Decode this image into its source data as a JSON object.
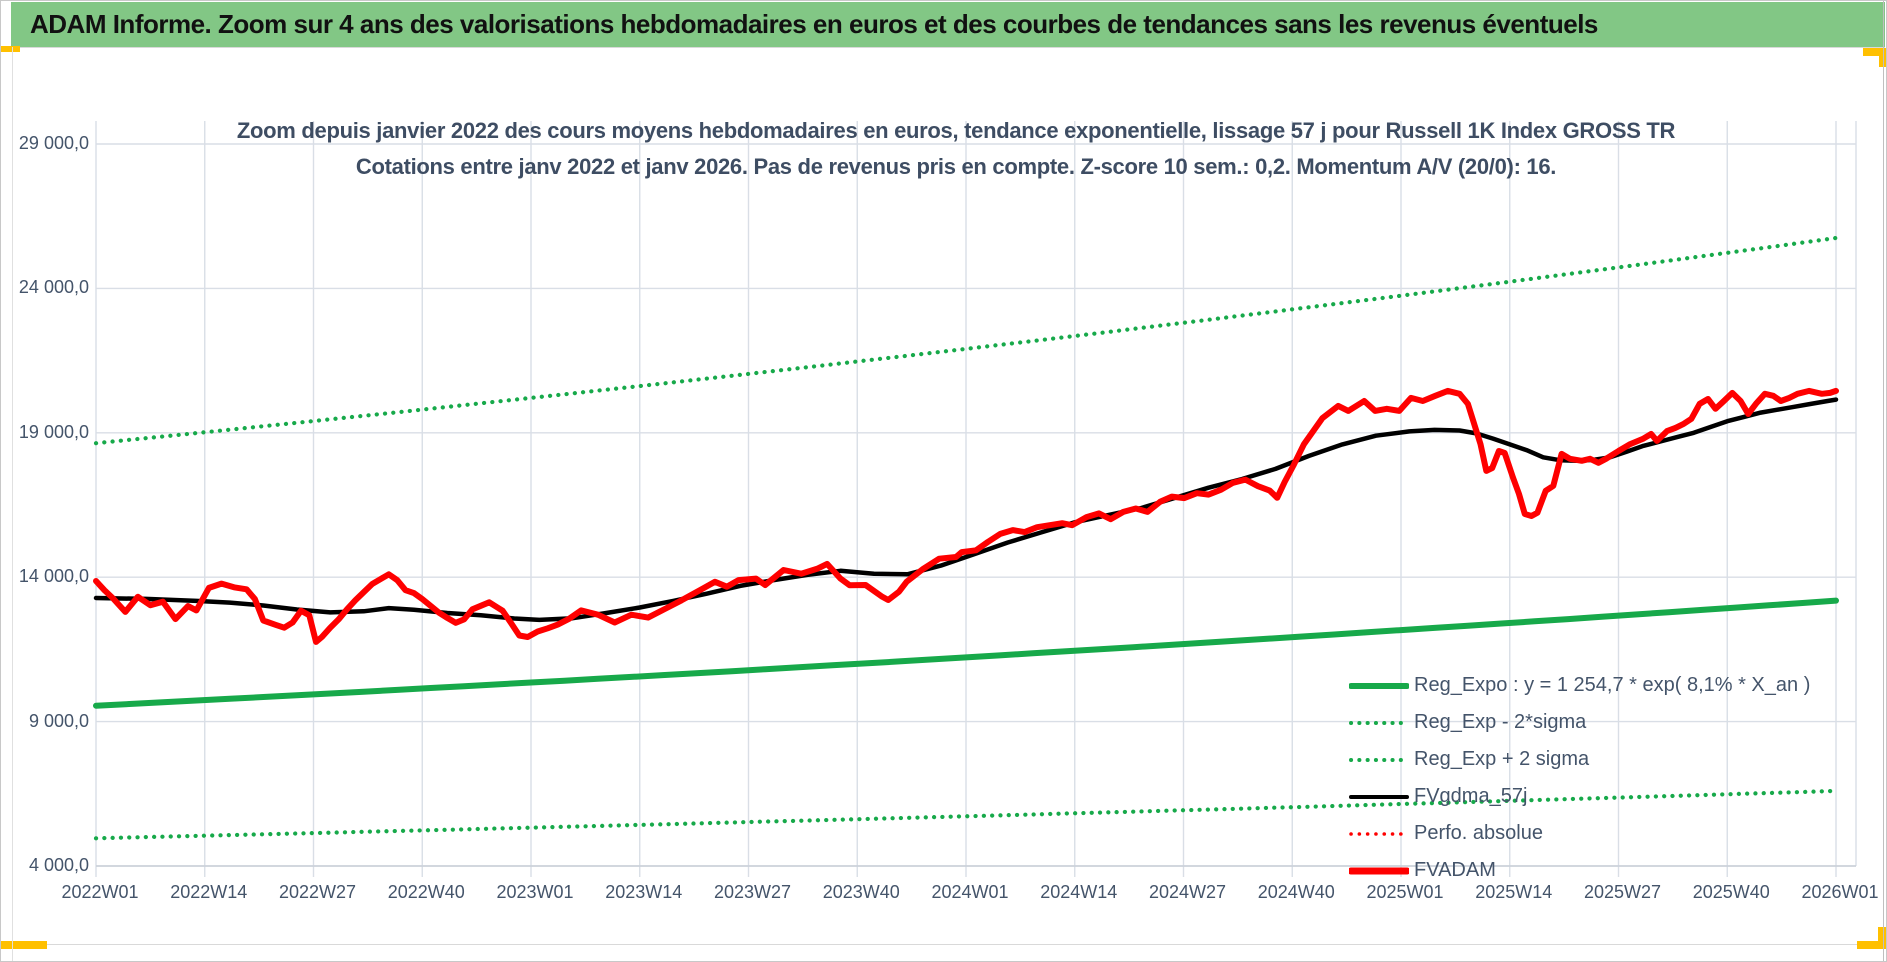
{
  "header": {
    "title": "ADAM Informe. Zoom sur 4 ans des valorisations hebdomadaires en euros et des courbes de tendances sans les revenus éventuels"
  },
  "chart": {
    "title_line1": "Zoom depuis janvier 2022 des cours moyens hebdomadaires en euros, tendance exponentielle, lissage 57 j pour Russell 1K Index GROSS TR",
    "title_line2": "Cotations entre janv 2022 et janv 2026. Pas de revenus pris en compte. Z-score 10 sem.: 0,2. Momentum A/V (20/0): 16."
  },
  "chart_data": {
    "type": "line",
    "title": "Zoom depuis janvier 2022 des cours moyens hebdomadaires en euros, tendance exponentielle, lissage 57 j pour Russell 1K Index GROSS TR",
    "subtitle": "Cotations entre janv 2022 et janv 2026. Pas de revenus pris en compte. Z-score 10 sem.: 0,2. Momentum A/V (20/0): 16.",
    "legend_position": "inside-right",
    "grid": true,
    "colors": {
      "green": "#17A94A",
      "red": "#FE0000",
      "black": "#000000",
      "grid": "#D9DEE6",
      "axis_text": "#44546A",
      "header_green": "#82C785",
      "yellow": "#FFC000"
    },
    "x_axis": {
      "tick_labels": [
        "2022W01",
        "2022W14",
        "2022W27",
        "2022W40",
        "2023W01",
        "2023W14",
        "2023W27",
        "2023W40",
        "2024W01",
        "2024W14",
        "2024W27",
        "2024W40",
        "2025W01",
        "2025W14",
        "2025W27",
        "2025W40",
        "2026W01"
      ],
      "weeks_per_tick": 13,
      "total_weeks": 208
    },
    "y_axis": {
      "tick_labels": [
        "29 000,0",
        "24 000,0",
        "19 000,0",
        "14 000,0",
        "9 000,0",
        "4 000,0"
      ],
      "tick_values": [
        29000,
        24000,
        19000,
        14000,
        9000,
        4000
      ],
      "min": 4000,
      "max": 29000
    },
    "legend": [
      {
        "label": "Reg_Expo : y = 1 254,7 * exp( 8,1% *  X_an )",
        "style": "solid",
        "color": "green",
        "width": 6
      },
      {
        "label": "Reg_Exp - 2*sigma",
        "style": "dotted",
        "color": "green",
        "width": 4
      },
      {
        "label": "Reg_Exp + 2 sigma",
        "style": "dotted",
        "color": "green",
        "width": 4
      },
      {
        "label": "FVgdma_57j",
        "style": "solid",
        "color": "black",
        "width": 4
      },
      {
        "label": "Perfo. absolue",
        "style": "dotted",
        "color": "red",
        "width": 3.5
      },
      {
        "label": "FVADAM",
        "style": "solid",
        "color": "red",
        "width": 7
      }
    ],
    "series": [
      {
        "name": "Reg_Exp - 2*sigma",
        "style": "dotted",
        "color": "green",
        "width": 4.2,
        "z": 1,
        "trend": {
          "start": 4960,
          "end": 6600
        }
      },
      {
        "name": "Reg_Exp + 2 sigma",
        "style": "dotted",
        "color": "green",
        "width": 4.2,
        "z": 2,
        "trend": {
          "start": 18640,
          "end": 25745
        }
      },
      {
        "name": "Reg_Expo",
        "style": "solid",
        "color": "green",
        "width": 6,
        "z": 3,
        "trend": {
          "start": 9550,
          "end": 13190
        }
      },
      {
        "name": "Perfo. absolue",
        "style": "dotted",
        "color": "red",
        "width": 3.5,
        "z": 4,
        "same_as": "FVADAM"
      },
      {
        "name": "FVgdma_57j",
        "style": "solid",
        "color": "black",
        "width": 4.5,
        "z": 5,
        "points": [
          [
            0,
            13280
          ],
          [
            6,
            13250
          ],
          [
            12,
            13180
          ],
          [
            16,
            13120
          ],
          [
            20,
            13020
          ],
          [
            24,
            12880
          ],
          [
            28,
            12780
          ],
          [
            32,
            12820
          ],
          [
            35,
            12930
          ],
          [
            38,
            12870
          ],
          [
            42,
            12760
          ],
          [
            46,
            12680
          ],
          [
            50,
            12570
          ],
          [
            53,
            12520
          ],
          [
            57,
            12580
          ],
          [
            61,
            12760
          ],
          [
            65,
            12950
          ],
          [
            69,
            13180
          ],
          [
            73,
            13430
          ],
          [
            77,
            13700
          ],
          [
            81,
            13900
          ],
          [
            85,
            14080
          ],
          [
            89,
            14220
          ],
          [
            93,
            14120
          ],
          [
            97,
            14100
          ],
          [
            101,
            14400
          ],
          [
            105,
            14800
          ],
          [
            109,
            15200
          ],
          [
            113,
            15550
          ],
          [
            117,
            15900
          ],
          [
            121,
            16150
          ],
          [
            125,
            16400
          ],
          [
            129,
            16750
          ],
          [
            133,
            17100
          ],
          [
            137,
            17400
          ],
          [
            141,
            17750
          ],
          [
            145,
            18200
          ],
          [
            149,
            18600
          ],
          [
            153,
            18900
          ],
          [
            157,
            19050
          ],
          [
            160,
            19100
          ],
          [
            163,
            19080
          ],
          [
            165,
            18980
          ],
          [
            167,
            18800
          ],
          [
            169,
            18600
          ],
          [
            171,
            18400
          ],
          [
            173,
            18150
          ],
          [
            175,
            18050
          ],
          [
            177,
            18030
          ],
          [
            179,
            18060
          ],
          [
            181,
            18150
          ],
          [
            183,
            18350
          ],
          [
            185,
            18550
          ],
          [
            187,
            18700
          ],
          [
            189,
            18850
          ],
          [
            191,
            19000
          ],
          [
            193,
            19200
          ],
          [
            195,
            19400
          ],
          [
            197,
            19550
          ],
          [
            199,
            19700
          ],
          [
            201,
            19800
          ],
          [
            203,
            19900
          ],
          [
            205,
            20000
          ],
          [
            207,
            20100
          ],
          [
            208,
            20150
          ]
        ]
      },
      {
        "name": "FVADAM",
        "style": "solid",
        "color": "red",
        "width": 6,
        "z": 6,
        "points": [
          [
            0,
            13870
          ],
          [
            1,
            13550
          ],
          [
            2,
            13280
          ],
          [
            3.5,
            12800
          ],
          [
            5,
            13320
          ],
          [
            6.5,
            13030
          ],
          [
            8,
            13150
          ],
          [
            9.5,
            12550
          ],
          [
            11,
            13000
          ],
          [
            12,
            12850
          ],
          [
            13.5,
            13630
          ],
          [
            15,
            13780
          ],
          [
            16.5,
            13650
          ],
          [
            18,
            13580
          ],
          [
            19,
            13240
          ],
          [
            20,
            12500
          ],
          [
            21.5,
            12350
          ],
          [
            22.5,
            12250
          ],
          [
            23.5,
            12430
          ],
          [
            24.5,
            12840
          ],
          [
            25.5,
            12680
          ],
          [
            26.3,
            11760
          ],
          [
            27,
            11930
          ],
          [
            28,
            12250
          ],
          [
            29,
            12540
          ],
          [
            30,
            12890
          ],
          [
            31,
            13200
          ],
          [
            32,
            13480
          ],
          [
            33,
            13760
          ],
          [
            34,
            13930
          ],
          [
            35,
            14100
          ],
          [
            36,
            13900
          ],
          [
            37,
            13550
          ],
          [
            38,
            13450
          ],
          [
            39,
            13240
          ],
          [
            40,
            13010
          ],
          [
            41,
            12770
          ],
          [
            42,
            12590
          ],
          [
            43,
            12420
          ],
          [
            44,
            12540
          ],
          [
            45,
            12890
          ],
          [
            46,
            13010
          ],
          [
            47,
            13130
          ],
          [
            48,
            12950
          ],
          [
            48.6,
            12840
          ],
          [
            49.6,
            12420
          ],
          [
            50.6,
            11980
          ],
          [
            51.6,
            11930
          ],
          [
            52.8,
            12120
          ],
          [
            54,
            12230
          ],
          [
            55.2,
            12360
          ],
          [
            56.5,
            12550
          ],
          [
            58,
            12850
          ],
          [
            60,
            12700
          ],
          [
            62,
            12430
          ],
          [
            64,
            12700
          ],
          [
            66,
            12600
          ],
          [
            68,
            12900
          ],
          [
            70,
            13200
          ],
          [
            72.5,
            13600
          ],
          [
            74,
            13840
          ],
          [
            75.4,
            13670
          ],
          [
            76.8,
            13900
          ],
          [
            78.9,
            13950
          ],
          [
            80,
            13730
          ],
          [
            82.2,
            14250
          ],
          [
            84.3,
            14120
          ],
          [
            86.2,
            14290
          ],
          [
            87.4,
            14460
          ],
          [
            89,
            13950
          ],
          [
            90.1,
            13720
          ],
          [
            92,
            13730
          ],
          [
            94,
            13320
          ],
          [
            94.7,
            13210
          ],
          [
            96,
            13500
          ],
          [
            96.9,
            13840
          ],
          [
            98.9,
            14290
          ],
          [
            100.8,
            14640
          ],
          [
            102.8,
            14700
          ],
          [
            103.5,
            14870
          ],
          [
            105.2,
            14930
          ],
          [
            106.6,
            15220
          ],
          [
            108.1,
            15500
          ],
          [
            109.6,
            15630
          ],
          [
            111,
            15560
          ],
          [
            112.5,
            15730
          ],
          [
            114,
            15800
          ],
          [
            115.5,
            15870
          ],
          [
            116.7,
            15800
          ],
          [
            118.4,
            16080
          ],
          [
            119.9,
            16210
          ],
          [
            121.3,
            16010
          ],
          [
            122.8,
            16260
          ],
          [
            124.3,
            16380
          ],
          [
            125.7,
            16260
          ],
          [
            127.2,
            16610
          ],
          [
            128.6,
            16790
          ],
          [
            130.1,
            16740
          ],
          [
            131.6,
            16910
          ],
          [
            133,
            16860
          ],
          [
            134.5,
            17030
          ],
          [
            135.9,
            17270
          ],
          [
            137.4,
            17380
          ],
          [
            138.9,
            17150
          ],
          [
            140.3,
            17000
          ],
          [
            141.2,
            16750
          ],
          [
            142.1,
            17300
          ],
          [
            143.2,
            17900
          ],
          [
            144.4,
            18610
          ],
          [
            146.6,
            19510
          ],
          [
            148.5,
            19930
          ],
          [
            149.7,
            19760
          ],
          [
            151.6,
            20100
          ],
          [
            152.9,
            19760
          ],
          [
            154.3,
            19830
          ],
          [
            155.8,
            19760
          ],
          [
            157.2,
            20210
          ],
          [
            158.6,
            20100
          ],
          [
            160.1,
            20280
          ],
          [
            161.6,
            20450
          ],
          [
            163,
            20350
          ],
          [
            164,
            20000
          ],
          [
            165.5,
            18610
          ],
          [
            166.2,
            17680
          ],
          [
            166.9,
            17780
          ],
          [
            167.7,
            18370
          ],
          [
            168.4,
            18300
          ],
          [
            169.4,
            17440
          ],
          [
            170.1,
            16880
          ],
          [
            170.8,
            16190
          ],
          [
            171.6,
            16120
          ],
          [
            172.3,
            16230
          ],
          [
            173.3,
            16990
          ],
          [
            174.2,
            17160
          ],
          [
            175.2,
            18270
          ],
          [
            176.2,
            18100
          ],
          [
            177.6,
            18030
          ],
          [
            178.6,
            18100
          ],
          [
            179.6,
            17960
          ],
          [
            180.5,
            18100
          ],
          [
            182,
            18370
          ],
          [
            183.4,
            18610
          ],
          [
            184.9,
            18790
          ],
          [
            185.9,
            18960
          ],
          [
            186.6,
            18720
          ],
          [
            187.8,
            19060
          ],
          [
            188.8,
            19170
          ],
          [
            189.8,
            19310
          ],
          [
            190.7,
            19480
          ],
          [
            191.7,
            20000
          ],
          [
            192.7,
            20170
          ],
          [
            193.6,
            19830
          ],
          [
            194.6,
            20100
          ],
          [
            195.6,
            20380
          ],
          [
            196.6,
            20100
          ],
          [
            197.5,
            19650
          ],
          [
            198.5,
            20030
          ],
          [
            199.5,
            20350
          ],
          [
            200.5,
            20280
          ],
          [
            201.4,
            20100
          ],
          [
            202.4,
            20210
          ],
          [
            203.4,
            20350
          ],
          [
            204.8,
            20450
          ],
          [
            206.3,
            20350
          ],
          [
            207.3,
            20380
          ],
          [
            208,
            20450
          ]
        ]
      }
    ]
  }
}
